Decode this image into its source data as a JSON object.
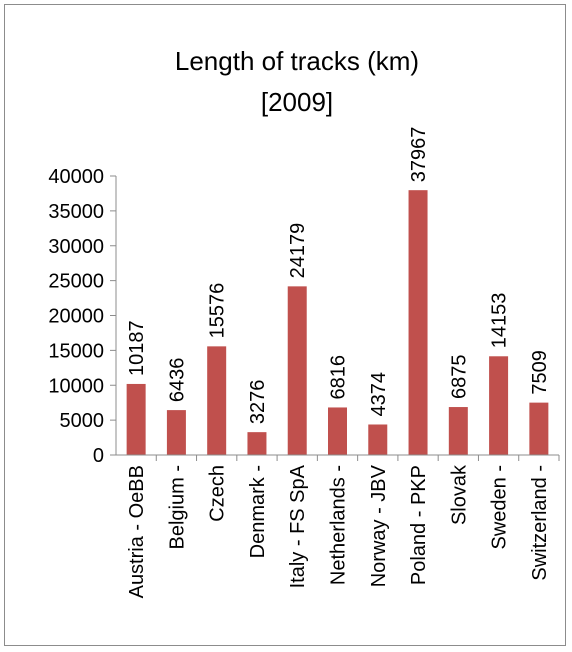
{
  "chart_data": {
    "type": "bar",
    "title_line1": "Length of tracks (km)",
    "title_line2": "[2009]",
    "categories": [
      "Austria - OeBB",
      "Belgium -",
      "Czech",
      "Denmark -",
      "Italy - FS SpA",
      "Netherlands -",
      "Norway - JBV",
      "Poland - PKP",
      "Slovak",
      "Sweden -",
      "Switzerland -"
    ],
    "values": [
      10187,
      6436,
      15576,
      3276,
      24179,
      6816,
      4374,
      37967,
      6875,
      14153,
      7509
    ],
    "value_labels": [
      "10187",
      "6436",
      "15576",
      "3276",
      "24179",
      "6816",
      "4374",
      "37967",
      "6875",
      "14153",
      "7509"
    ],
    "y_ticks": [
      "0",
      "5000",
      "10000",
      "15000",
      "20000",
      "25000",
      "30000",
      "35000",
      "40000"
    ],
    "ylim": [
      0,
      40000
    ],
    "grid": false,
    "legend": "none",
    "colors": {
      "bar": "#c0504d",
      "axis": "#8c8c8c"
    }
  }
}
